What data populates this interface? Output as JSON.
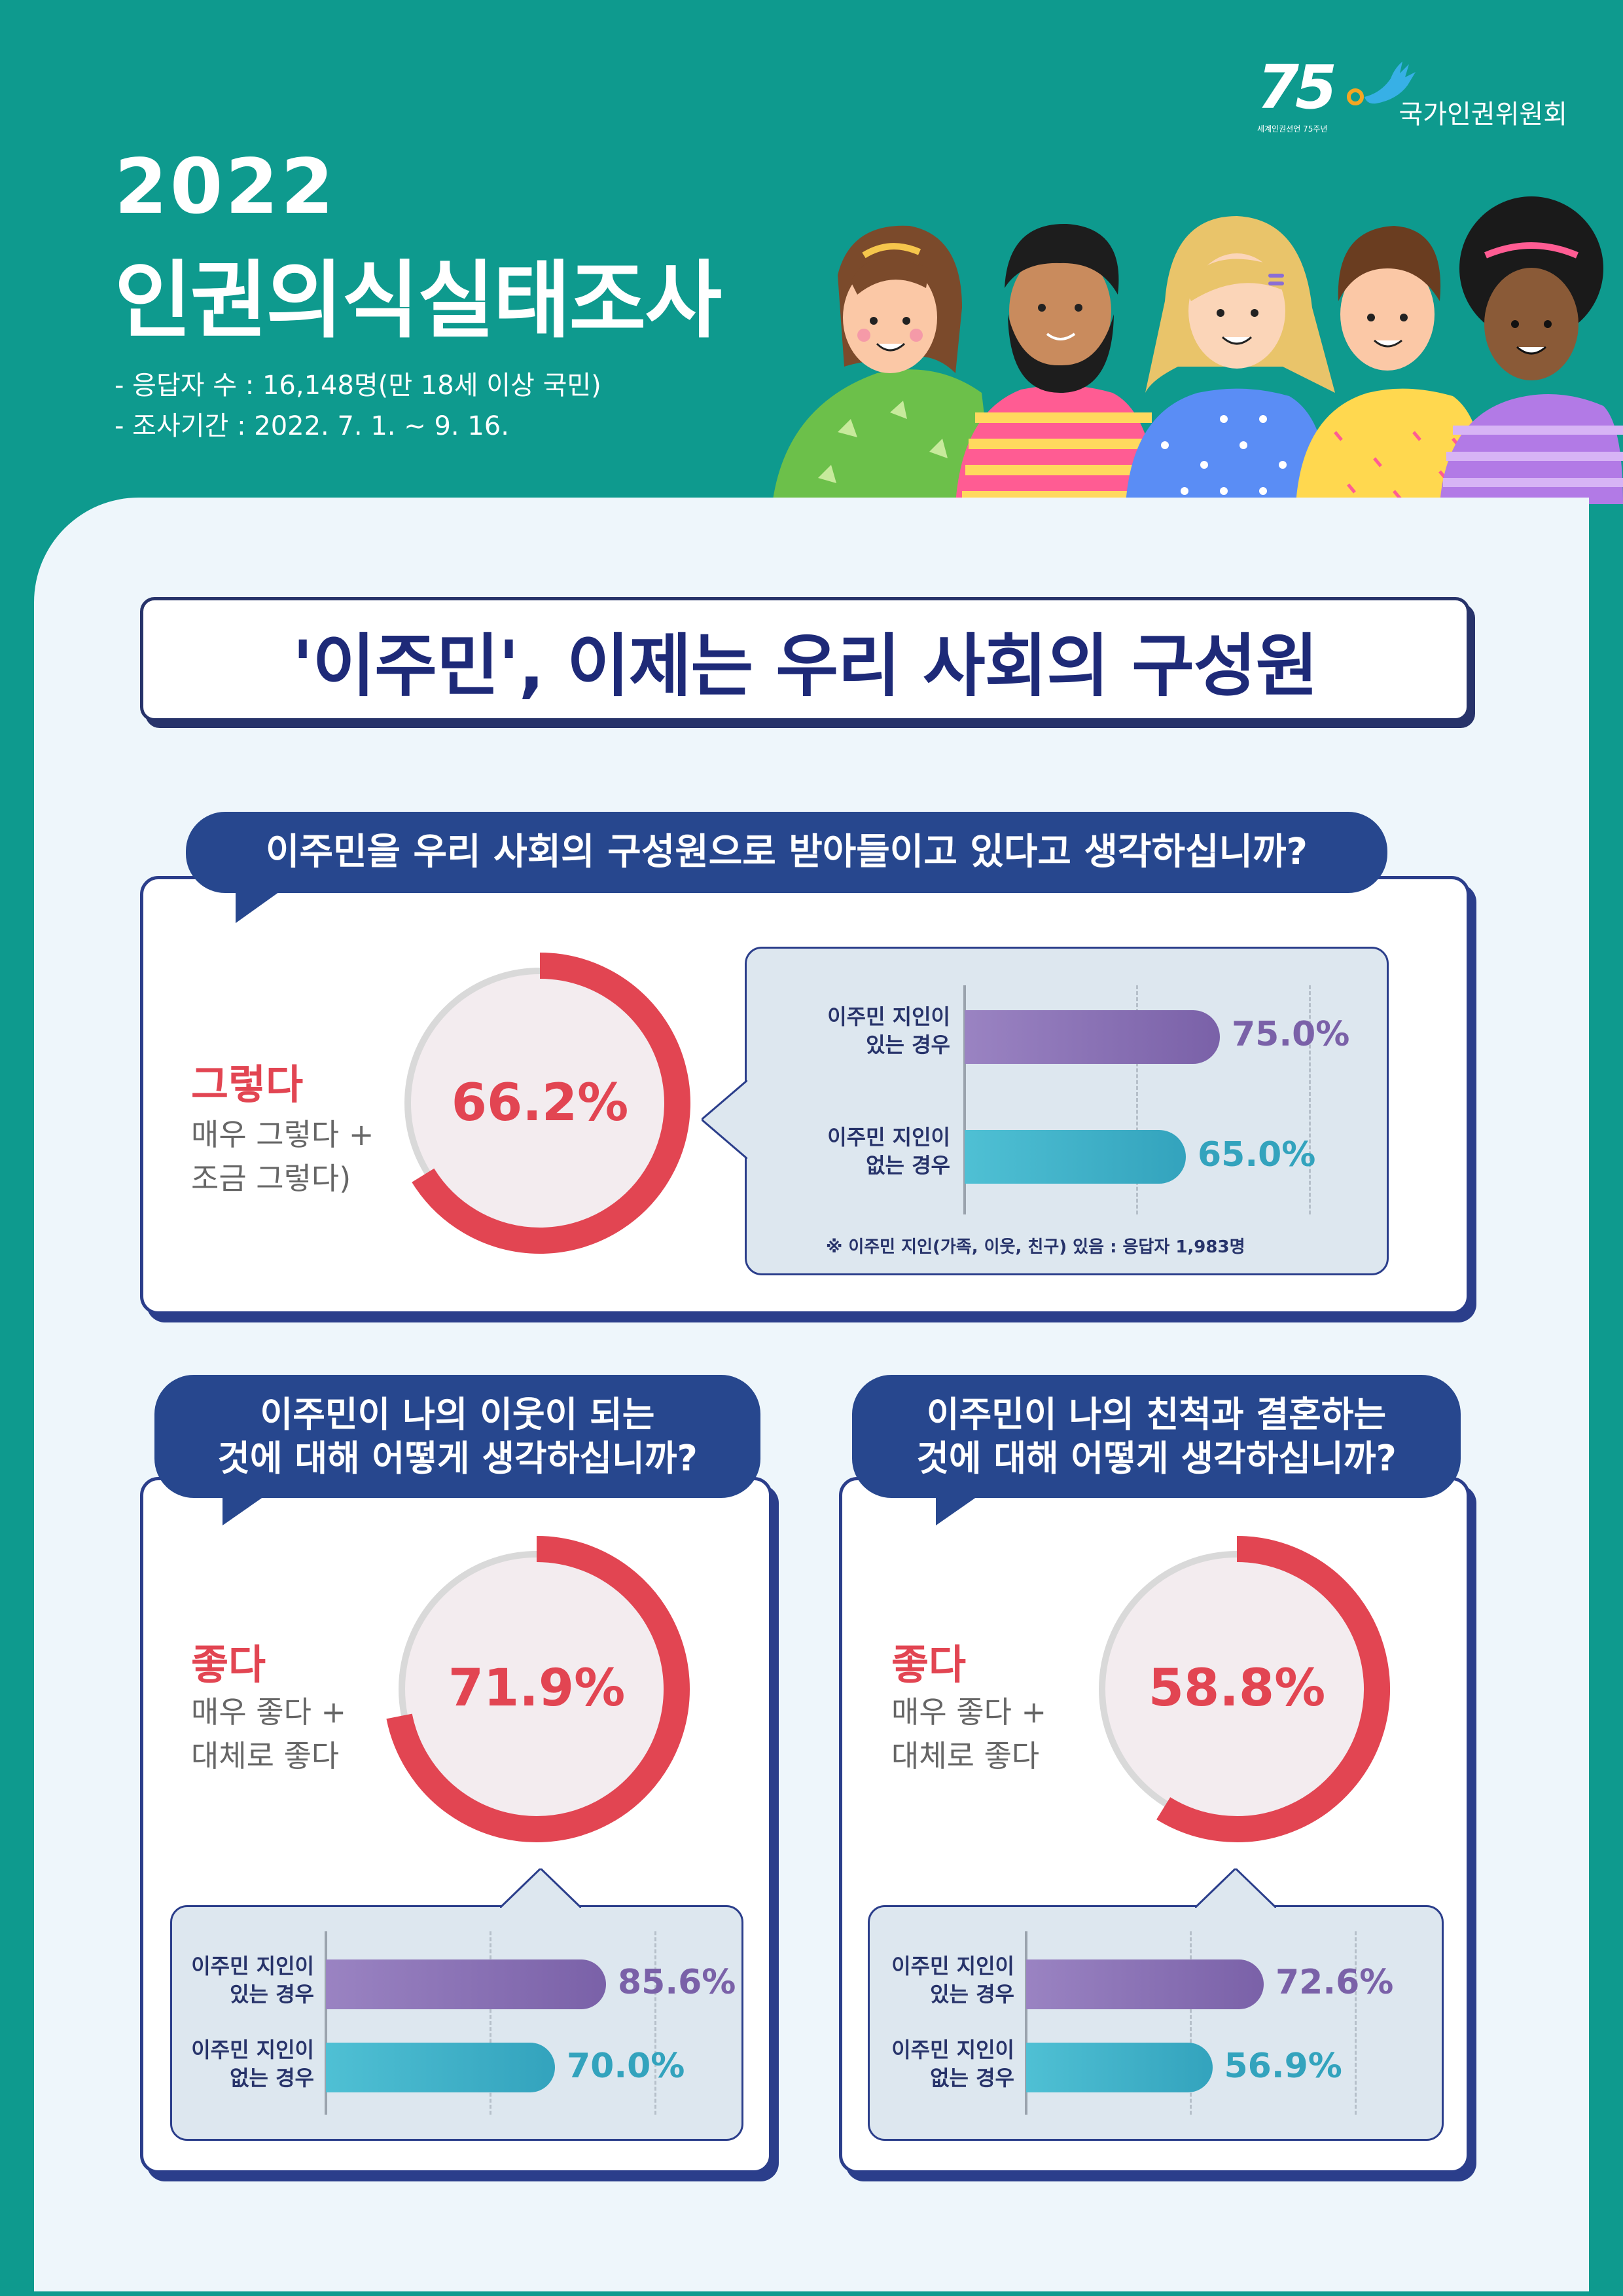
{
  "header": {
    "logo_75_number": "75",
    "logo_75_sub": "세계인권선언 75주년",
    "org_name": "국가인권위원회",
    "year": "2022",
    "title": "인권의식실태조사",
    "respondents": "- 응답자 수 : 16,148명(만 18세 이상 국민)",
    "period": "- 조사기간 : 2022. 7. 1. ~ 9. 16."
  },
  "banner": "'이주민', 이제는 우리 사회의 구성원",
  "colors": {
    "teal": "#0e9a8e",
    "navy": "#27336a",
    "red": "#e24552",
    "purple": "#7a61a8",
    "cyan": "#33a3bd"
  },
  "q1": {
    "question": "이주민을 우리 사회의 구성원으로 받아들이고 있다고 생각하십니까?",
    "answer": "그렇다",
    "answer_detail_1": "매우 그렇다 +",
    "answer_detail_2": "조금 그렇다)",
    "pct_label": "66.2%",
    "footnote": "※ 이주민 지인(가족, 이웃, 친구) 있음 : 응답자 1,983명",
    "bars": [
      {
        "label_1": "이주민 지인이",
        "label_2": "있는 경우",
        "value_label": "75.0%"
      },
      {
        "label_1": "이주민 지인이",
        "label_2": "없는 경우",
        "value_label": "65.0%"
      }
    ]
  },
  "q2": {
    "question_1": "이주민이 나의 이웃이 되는",
    "question_2": "것에 대해 어떻게 생각하십니까?",
    "answer": "좋다",
    "answer_detail_1": "매우 좋다 +",
    "answer_detail_2": "대체로 좋다",
    "pct_label": "71.9%",
    "bars": [
      {
        "label_1": "이주민 지인이",
        "label_2": "있는 경우",
        "value_label": "85.6%"
      },
      {
        "label_1": "이주민 지인이",
        "label_2": "없는 경우",
        "value_label": "70.0%"
      }
    ]
  },
  "q3": {
    "question_1": "이주민이 나의 친척과 결혼하는",
    "question_2": "것에 대해 어떻게 생각하십니까?",
    "answer": "좋다",
    "answer_detail_1": "매우 좋다 +",
    "answer_detail_2": "대체로 좋다",
    "pct_label": "58.8%",
    "bars": [
      {
        "label_1": "이주민 지인이",
        "label_2": "있는 경우",
        "value_label": "72.6%"
      },
      {
        "label_1": "이주민 지인이",
        "label_2": "없는 경우",
        "value_label": "56.9%"
      }
    ]
  },
  "chart_data": [
    {
      "type": "pie",
      "title": "이주민을 우리 사회의 구성원으로 받아들이고 있다고 생각하십니까?",
      "categories": [
        "그렇다"
      ],
      "values": [
        66.2
      ]
    },
    {
      "type": "bar",
      "title": "이주민을 우리 사회의 구성원으로 받아들이고 있다고 생각하십니까?",
      "categories": [
        "이주민 지인이 있는 경우",
        "이주민 지인이 없는 경우"
      ],
      "values": [
        75.0,
        65.0
      ]
    },
    {
      "type": "pie",
      "title": "이주민이 나의 이웃이 되는 것에 대해 어떻게 생각하십니까?",
      "categories": [
        "좋다"
      ],
      "values": [
        71.9
      ]
    },
    {
      "type": "bar",
      "title": "이주민이 나의 이웃이 되는 것에 대해 어떻게 생각하십니까?",
      "categories": [
        "이주민 지인이 있는 경우",
        "이주민 지인이 없는 경우"
      ],
      "values": [
        85.6,
        70.0
      ]
    },
    {
      "type": "pie",
      "title": "이주민이 나의 친척과 결혼하는 것에 대해 어떻게 생각하십니까?",
      "categories": [
        "좋다"
      ],
      "values": [
        58.8
      ]
    },
    {
      "type": "bar",
      "title": "이주민이 나의 친척과 결혼하는 것에 대해 어떻게 생각하십니까?",
      "categories": [
        "이주민 지인이 있는 경우",
        "이주민 지인이 없는 경우"
      ],
      "values": [
        72.6,
        56.9
      ]
    }
  ]
}
